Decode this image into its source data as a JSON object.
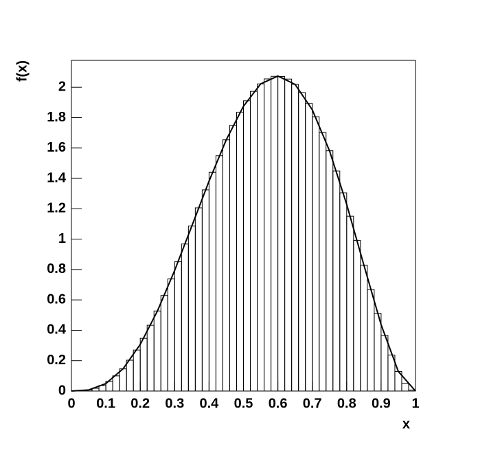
{
  "chart_data": {
    "type": "histogram",
    "x_label": "x",
    "y_label": "f(x)",
    "bins": [
      0,
      0.02,
      0.04,
      0.06,
      0.08,
      0.1,
      0.12,
      0.14,
      0.16,
      0.18,
      0.2,
      0.22,
      0.24,
      0.26,
      0.28,
      0.3,
      0.32,
      0.34,
      0.36,
      0.38,
      0.4,
      0.42,
      0.44,
      0.46,
      0.48,
      0.5,
      0.52,
      0.54,
      0.56,
      0.58,
      0.6,
      0.62,
      0.64,
      0.66,
      0.68,
      0.7,
      0.72,
      0.74,
      0.76,
      0.78,
      0.8,
      0.82,
      0.84,
      0.86,
      0.88,
      0.9,
      0.92,
      0.94,
      0.96,
      0.98,
      1
    ],
    "values": [
      0.0,
      0.002,
      0.007,
      0.018,
      0.036,
      0.063,
      0.1,
      0.146,
      0.203,
      0.27,
      0.347,
      0.433,
      0.527,
      0.629,
      0.738,
      0.851,
      0.968,
      1.087,
      1.206,
      1.324,
      1.44,
      1.55,
      1.654,
      1.75,
      1.836,
      1.911,
      1.973,
      2.022,
      2.055,
      2.072,
      2.071,
      2.054,
      2.019,
      1.965,
      1.894,
      1.806,
      1.702,
      1.582,
      1.449,
      1.305,
      1.151,
      0.992,
      0.829,
      0.668,
      0.512,
      0.366,
      0.237,
      0.129,
      0.049,
      0.006
    ],
    "color": "#000000",
    "curve": {
      "x": [
        0,
        0.05,
        0.1,
        0.15,
        0.2,
        0.25,
        0.3,
        0.35,
        0.4,
        0.45,
        0.5,
        0.55,
        0.6,
        0.65,
        0.7,
        0.75,
        0.8,
        0.85,
        0.9,
        0.95,
        1
      ],
      "values": [
        0,
        0.007,
        0.049,
        0.146,
        0.307,
        0.527,
        0.794,
        1.087,
        1.382,
        1.654,
        1.875,
        2.022,
        2.074,
        2.019,
        1.852,
        1.582,
        1.229,
        0.829,
        0.437,
        0.129,
        0
      ],
      "color": "#000000"
    },
    "xlim": [
      0,
      1
    ],
    "xticks": [
      0,
      0.1,
      0.2,
      0.3,
      0.4,
      0.5,
      0.6,
      0.7,
      0.8,
      0.9,
      1
    ],
    "ylim": [
      0,
      2.177
    ],
    "yticks": [
      0,
      0.2,
      0.4,
      0.6,
      0.8,
      1,
      1.2,
      1.4,
      1.6,
      1.8,
      2
    ],
    "grid": false
  }
}
